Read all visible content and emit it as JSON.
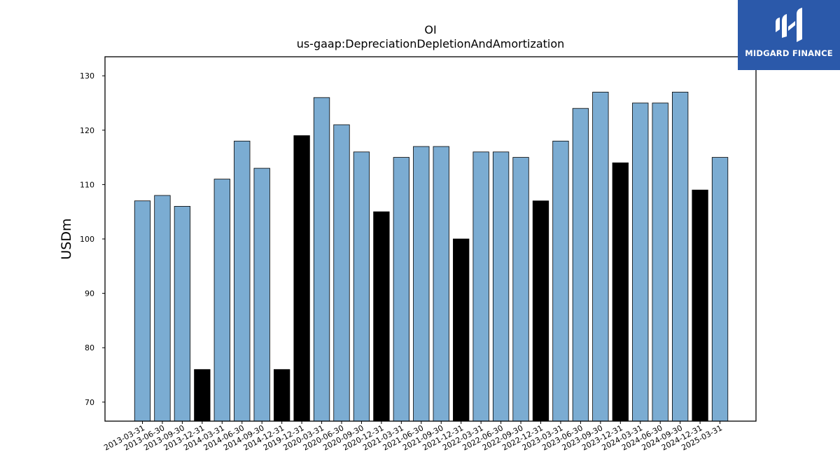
{
  "chart_data": {
    "type": "bar",
    "title": "OI",
    "subtitle": "us-gaap:DepreciationDepletionAndAmortization",
    "xlabel": "",
    "ylabel": "USDm",
    "ylim": [
      66.5,
      133.5
    ],
    "yticks": [
      70,
      80,
      90,
      100,
      110,
      120,
      130
    ],
    "grid": false,
    "categories": [
      "2013-03-31",
      "2013-06-30",
      "2013-09-30",
      "2013-12-31",
      "2014-03-31",
      "2014-06-30",
      "2014-09-30",
      "2014-12-31",
      "2019-12-31",
      "2020-03-31",
      "2020-06-30",
      "2020-09-30",
      "2020-12-31",
      "2021-03-31",
      "2021-06-30",
      "2021-09-30",
      "2021-12-31",
      "2022-03-31",
      "2022-06-30",
      "2022-09-30",
      "2022-12-31",
      "2023-03-31",
      "2023-06-30",
      "2023-09-30",
      "2023-12-31",
      "2024-03-31",
      "2024-06-30",
      "2024-09-30",
      "2024-12-31",
      "2025-03-31"
    ],
    "values": [
      107,
      108,
      106,
      76,
      111,
      118,
      113,
      76,
      119,
      126,
      121,
      116,
      105,
      115,
      117,
      117,
      100,
      116,
      116,
      115,
      107,
      118,
      124,
      127,
      114,
      125,
      125,
      127,
      109,
      115
    ],
    "bar_colors": {
      "quarter": "#7bacd2",
      "year_end": "#000000"
    },
    "year_end_flags": [
      false,
      false,
      false,
      true,
      false,
      false,
      false,
      true,
      true,
      false,
      false,
      false,
      true,
      false,
      false,
      false,
      true,
      false,
      false,
      false,
      true,
      false,
      false,
      false,
      true,
      false,
      false,
      false,
      true,
      false
    ]
  },
  "logo": {
    "text": "MIDGARD FINANCE",
    "background": "#2b59aa"
  }
}
